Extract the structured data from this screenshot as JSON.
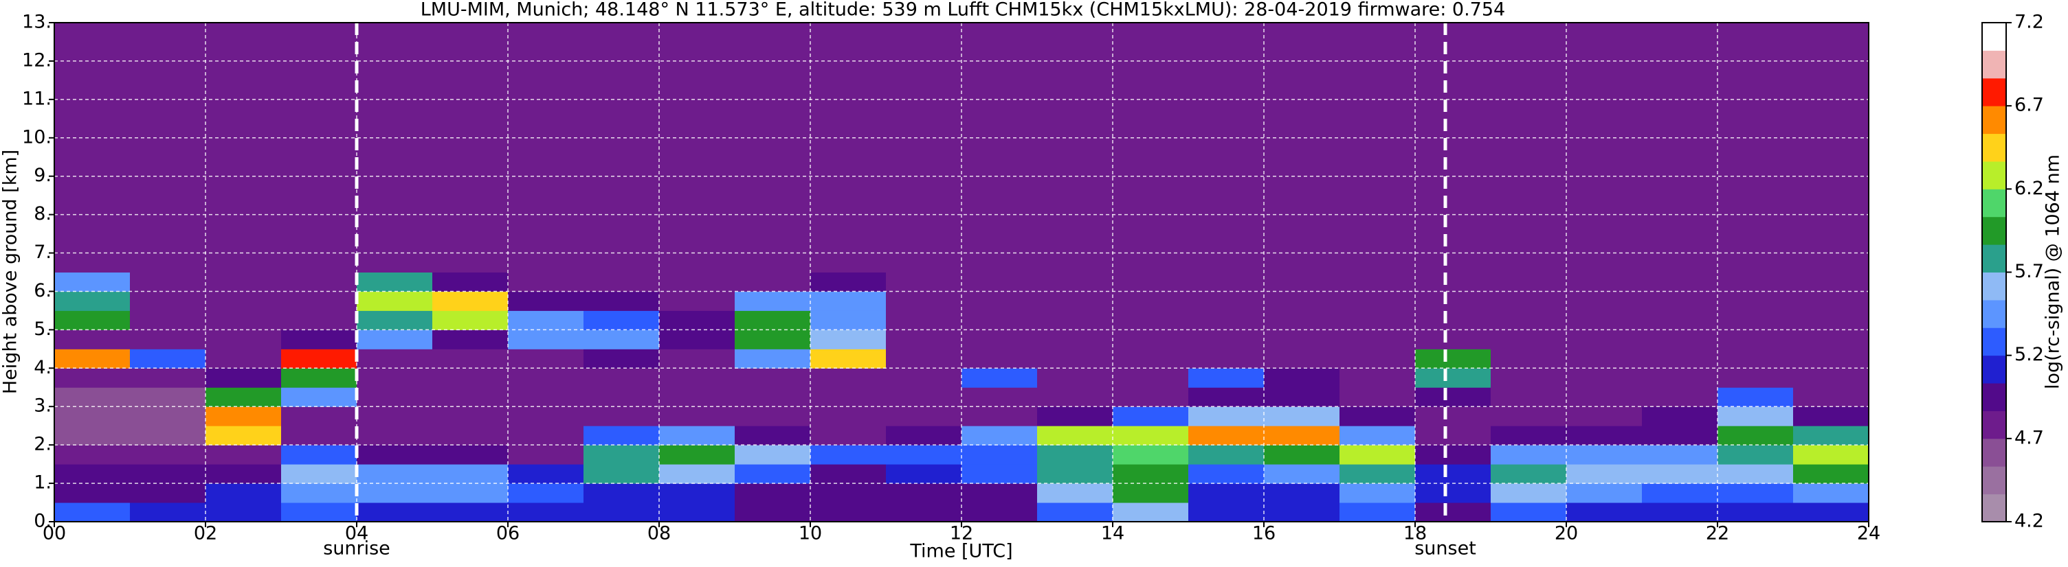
{
  "chart_data": {
    "type": "heatmap",
    "title": "LMU-MIM, Munich; 48.148° N 11.573° E, altitude: 539 m    Lufft CHM15kx (CHM15kxLMU): 28-04-2019    firmware: 0.754",
    "xlabel": "Time [UTC]",
    "ylabel": "Height above ground [km]",
    "colorbar_label": "log(rc-signal) @ 1064 nm",
    "xlim": [
      0,
      24
    ],
    "ylim": [
      0,
      13
    ],
    "clim": [
      4.2,
      7.2
    ],
    "xticks": [
      {
        "value": 0,
        "label": "00"
      },
      {
        "value": 2,
        "label": "02"
      },
      {
        "value": 4,
        "label": "04"
      },
      {
        "value": 6,
        "label": "06"
      },
      {
        "value": 8,
        "label": "08"
      },
      {
        "value": 10,
        "label": "10"
      },
      {
        "value": 12,
        "label": "12"
      },
      {
        "value": 14,
        "label": "14"
      },
      {
        "value": 16,
        "label": "16"
      },
      {
        "value": 18,
        "label": "18"
      },
      {
        "value": 20,
        "label": "20"
      },
      {
        "value": 22,
        "label": "22"
      },
      {
        "value": 24,
        "label": "24"
      }
    ],
    "yticks": [
      {
        "value": 0,
        "label": "0."
      },
      {
        "value": 1,
        "label": "1."
      },
      {
        "value": 2,
        "label": "2."
      },
      {
        "value": 3,
        "label": "3."
      },
      {
        "value": 4,
        "label": "4."
      },
      {
        "value": 5,
        "label": "5."
      },
      {
        "value": 6,
        "label": "6."
      },
      {
        "value": 7,
        "label": "7."
      },
      {
        "value": 8,
        "label": "8."
      },
      {
        "value": 9,
        "label": "9."
      },
      {
        "value": 10,
        "label": "10."
      },
      {
        "value": 11,
        "label": "11."
      },
      {
        "value": 12,
        "label": "12."
      },
      {
        "value": 13,
        "label": "13."
      }
    ],
    "cticks": [
      4.2,
      4.7,
      5.2,
      5.7,
      6.2,
      6.7,
      7.2
    ],
    "grid": true,
    "colors": [
      "#a88dab",
      "#9a70a0",
      "#8a4f95",
      "#6e1c8c",
      "#520a8a",
      "#2020d0",
      "#2d5cff",
      "#5c95ff",
      "#8fbaf5",
      "#2aa08c",
      "#229a28",
      "#4fd66a",
      "#b8ee2a",
      "#ffd21a",
      "#ff8a00",
      "#ff1a00",
      "#f0b4b4",
      "#ffffff"
    ],
    "annotations": [
      {
        "x": 4,
        "text": "sunrise"
      },
      {
        "x": 18.4,
        "text": "sunset"
      }
    ],
    "x": [
      0,
      1,
      2,
      3,
      4,
      5,
      6,
      7,
      8,
      9,
      10,
      11,
      12,
      13,
      14,
      15,
      16,
      17,
      18,
      19,
      20,
      21,
      22,
      23,
      24
    ],
    "y": [
      0,
      0.5,
      1,
      1.5,
      2,
      2.5,
      3,
      3.5,
      4,
      4.5,
      5,
      5.5,
      6,
      6.5,
      7,
      13
    ],
    "z": [
      [
        5.2,
        5.0,
        5.0,
        4.7,
        4.6,
        4.6,
        4.6,
        4.7,
        6.6,
        4.8,
        6.0,
        5.8,
        5.4,
        4.85,
        4.85
      ],
      [
        5.1,
        5.0,
        4.9,
        4.7,
        4.6,
        4.6,
        4.6,
        4.8,
        5.2,
        4.85,
        4.85,
        4.85,
        4.85,
        4.85,
        4.85
      ],
      [
        5.1,
        5.1,
        5.0,
        4.8,
        6.4,
        6.6,
        6.0,
        5.0,
        4.85,
        4.85,
        4.85,
        4.85,
        4.85,
        4.85,
        4.85
      ],
      [
        5.3,
        5.4,
        5.6,
        5.2,
        4.8,
        4.8,
        5.4,
        6.0,
        6.7,
        5.0,
        4.85,
        4.85,
        4.85,
        4.85,
        4.85
      ],
      [
        5.1,
        5.4,
        5.5,
        4.9,
        4.8,
        4.8,
        4.8,
        4.85,
        4.85,
        5.5,
        5.8,
        6.2,
        5.8,
        4.85,
        4.85
      ],
      [
        5.1,
        5.4,
        5.4,
        4.9,
        4.8,
        4.8,
        4.8,
        4.85,
        4.85,
        4.9,
        6.2,
        6.4,
        4.9,
        4.85,
        4.85
      ],
      [
        5.1,
        5.2,
        5.1,
        4.8,
        4.7,
        4.7,
        4.7,
        4.85,
        4.85,
        5.4,
        5.4,
        4.9,
        4.85,
        4.85,
        4.85
      ],
      [
        5.1,
        5.1,
        5.7,
        5.8,
        5.2,
        4.7,
        4.8,
        4.85,
        5.0,
        5.4,
        5.3,
        4.9,
        4.85,
        4.85,
        4.85
      ],
      [
        5.1,
        5.1,
        5.6,
        6.0,
        5.4,
        4.7,
        4.8,
        4.85,
        4.85,
        4.9,
        4.9,
        4.85,
        4.85,
        4.85,
        4.85
      ],
      [
        5.0,
        5.0,
        5.3,
        5.6,
        4.9,
        4.7,
        4.8,
        4.85,
        5.4,
        6.0,
        6.0,
        5.4,
        4.85,
        4.85,
        4.85
      ],
      [
        5.0,
        5.0,
        5.0,
        5.2,
        4.8,
        4.7,
        4.8,
        4.85,
        6.4,
        5.6,
        5.4,
        5.4,
        4.9,
        4.85,
        4.85
      ],
      [
        5.0,
        5.0,
        5.1,
        5.3,
        5.0,
        4.7,
        4.8,
        4.85,
        4.85,
        4.85,
        4.85,
        4.85,
        4.85,
        4.85,
        4.85
      ],
      [
        5.0,
        5.0,
        5.2,
        5.3,
        5.4,
        4.8,
        4.8,
        5.3,
        4.85,
        4.85,
        4.85,
        4.85,
        4.85,
        4.85,
        4.85
      ],
      [
        5.2,
        5.6,
        5.7,
        5.8,
        6.3,
        5.0,
        4.8,
        4.85,
        4.85,
        4.85,
        4.85,
        4.85,
        4.85,
        4.85,
        4.85
      ],
      [
        5.6,
        5.9,
        6.0,
        6.1,
        6.3,
        5.2,
        4.8,
        4.85,
        4.85,
        4.85,
        4.85,
        4.85,
        4.85,
        4.85,
        4.85
      ],
      [
        5.1,
        5.1,
        5.3,
        5.8,
        6.6,
        5.6,
        5.0,
        5.3,
        4.85,
        4.85,
        4.85,
        4.85,
        4.85,
        4.85,
        4.85
      ],
      [
        5.1,
        5.1,
        5.4,
        6.0,
        6.6,
        5.6,
        5.0,
        4.9,
        4.85,
        4.85,
        4.85,
        4.85,
        4.85,
        4.85,
        4.85
      ],
      [
        5.2,
        5.5,
        5.8,
        6.2,
        5.5,
        4.9,
        4.8,
        4.85,
        4.85,
        4.85,
        4.85,
        4.85,
        4.85,
        4.85,
        4.85
      ],
      [
        5.0,
        5.1,
        5.1,
        5.0,
        4.8,
        4.8,
        4.9,
        5.8,
        6.0,
        4.85,
        4.85,
        4.85,
        4.85,
        4.85,
        4.85
      ],
      [
        5.3,
        5.6,
        5.7,
        5.5,
        5.0,
        4.8,
        4.8,
        4.85,
        4.85,
        4.85,
        4.85,
        4.85,
        4.85,
        4.85,
        4.85
      ],
      [
        5.1,
        5.4,
        5.6,
        5.4,
        4.9,
        4.8,
        4.85,
        4.85,
        4.85,
        4.85,
        4.85,
        4.85,
        4.85,
        4.85,
        4.85
      ],
      [
        5.1,
        5.3,
        5.6,
        5.5,
        5.0,
        4.9,
        4.85,
        4.85,
        4.85,
        4.85,
        4.85,
        4.85,
        4.85,
        4.85,
        4.85
      ],
      [
        5.1,
        5.3,
        5.6,
        5.8,
        5.9,
        5.6,
        5.2,
        4.85,
        4.85,
        4.85,
        4.85,
        4.85,
        4.85,
        4.85,
        4.85
      ],
      [
        5.1,
        5.4,
        6.0,
        6.2,
        5.8,
        5.0,
        4.85,
        4.85,
        4.85,
        4.85,
        4.85,
        4.85,
        4.85,
        4.85,
        4.85
      ]
    ]
  }
}
